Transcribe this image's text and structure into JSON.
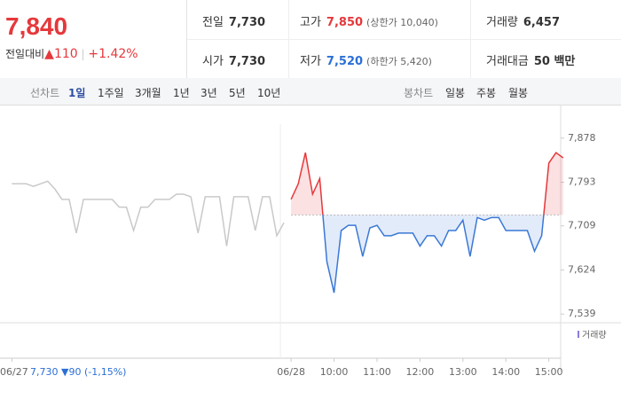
{
  "quote": {
    "price": "7,840",
    "change_label": "전일대비",
    "change": "▲110",
    "change_pct": "+1.42%"
  },
  "stats": [
    {
      "label": "전일",
      "value": "7,730"
    },
    {
      "label": "고가",
      "value": "7,850",
      "note": "(상한가 10,040)"
    },
    {
      "label": "거래량",
      "value": "6,457"
    },
    {
      "label": "시가",
      "value": "7,730"
    },
    {
      "label": "저가",
      "value": "7,520",
      "note": "(하한가 5,420)"
    },
    {
      "label": "거래대금",
      "value": "50 백만"
    }
  ],
  "nav": {
    "line_label": "선차트",
    "line_periods": [
      "1일",
      "1주일",
      "3개월",
      "1년",
      "3년",
      "5년",
      "10년"
    ],
    "candle_label": "봉차트",
    "candle_periods": [
      "일봉",
      "주봉",
      "월봉"
    ]
  },
  "chart_data": {
    "type": "line",
    "categories": [
      "06/27",
      null,
      null,
      null,
      null,
      null,
      null,
      null,
      null,
      null,
      null,
      null,
      null,
      null,
      null,
      null,
      null,
      null,
      null,
      null,
      null,
      null,
      null,
      null,
      null,
      null,
      null,
      null,
      null,
      null,
      null,
      null,
      null,
      null,
      null,
      null,
      null,
      null,
      null,
      "06/28",
      null,
      null,
      null,
      null,
      null,
      "10:00",
      null,
      null,
      null,
      null,
      null,
      "11:00",
      null,
      null,
      null,
      null,
      null,
      "12:00",
      null,
      null,
      null,
      null,
      null,
      "13:00",
      null,
      null,
      null,
      null,
      null,
      "14:00",
      null,
      null,
      null,
      null,
      null,
      "15:00",
      null,
      null
    ],
    "series": [
      {
        "color": "#c9c9c9",
        "values": [
          7790,
          7790,
          7790,
          7785,
          7790,
          7795,
          7780,
          7760,
          7760,
          7695,
          7760,
          7760,
          7760,
          7760,
          7760,
          7745,
          7745,
          7700,
          7745,
          7745,
          7760,
          7760,
          7760,
          7770,
          7770,
          7765,
          7695,
          7765,
          7765,
          7765,
          7670,
          7765,
          7765,
          7765,
          7700,
          7765,
          7765,
          7690,
          7715,
          null,
          null,
          null,
          null,
          null,
          null,
          null,
          null,
          null,
          null,
          null,
          null,
          null,
          null,
          null,
          null,
          null,
          null,
          null,
          null,
          null,
          null,
          null,
          null,
          null,
          null,
          null,
          null,
          null,
          null,
          null,
          null,
          null,
          null,
          null,
          null,
          null,
          null,
          null
        ]
      },
      {
        "color": "#e5383b",
        "color_down": "#3a78d6",
        "values": [
          null,
          null,
          null,
          null,
          null,
          null,
          null,
          null,
          null,
          null,
          null,
          null,
          null,
          null,
          null,
          null,
          null,
          null,
          null,
          null,
          null,
          null,
          null,
          null,
          null,
          null,
          null,
          null,
          null,
          null,
          null,
          null,
          null,
          null,
          null,
          null,
          null,
          null,
          null,
          7760,
          7790,
          7850,
          7770,
          7800,
          7640,
          7580,
          7700,
          7710,
          7710,
          7650,
          7705,
          7710,
          7690,
          7690,
          7695,
          7695,
          7695,
          7670,
          7690,
          7690,
          7670,
          7700,
          7700,
          7720,
          7650,
          7725,
          7720,
          7725,
          7725,
          7700,
          7700,
          7700,
          7700,
          7660,
          7690,
          7830,
          7850,
          7840
        ]
      }
    ],
    "ylim": [
      7512,
      7905
    ],
    "yticks": [
      {
        "value": 7878,
        "label": "7,878"
      },
      {
        "value": 7793,
        "label": "7,793"
      },
      {
        "value": 7709,
        "label": "7,709"
      },
      {
        "value": 7624,
        "label": "7,624"
      },
      {
        "value": 7539,
        "label": "7,539"
      }
    ],
    "baseline": {
      "value": 7730,
      "label": "7,730"
    },
    "baseline_change": "▼90",
    "baseline_change_pct": "(-1,15%)",
    "volume_label": "거래량",
    "grid": false
  }
}
